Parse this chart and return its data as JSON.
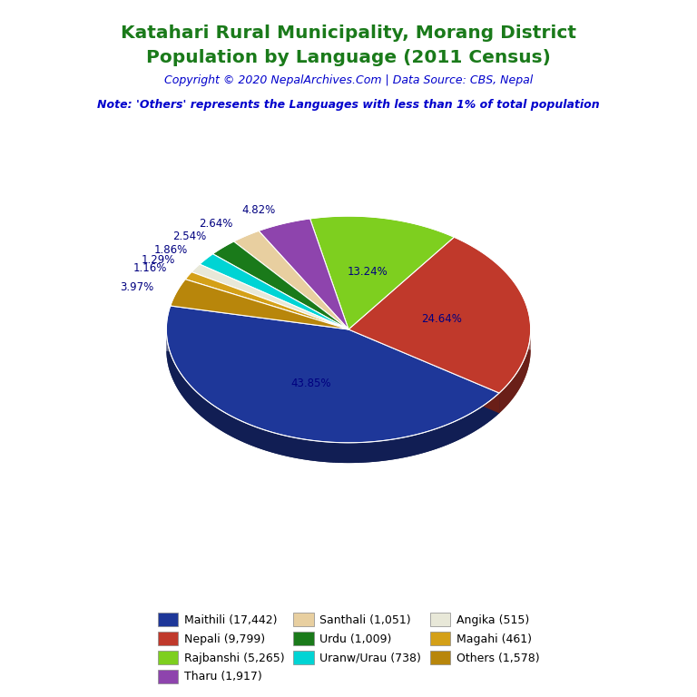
{
  "title_line1": "Katahari Rural Municipality, Morang District",
  "title_line2": "Population by Language (2011 Census)",
  "title_color": "#1a7a1a",
  "copyright_text": "Copyright © 2020 NepalArchives.Com | Data Source: CBS, Nepal",
  "copyright_color": "#0000cc",
  "note_text": "Note: 'Others' represents the Languages with less than 1% of total population",
  "note_color": "#0000cc",
  "labels": [
    "Maithili",
    "Nepali",
    "Rajbanshi",
    "Tharu",
    "Santhali",
    "Urdu",
    "Uranw/Urau",
    "Angika",
    "Magahi",
    "Others"
  ],
  "values": [
    17442,
    9799,
    5265,
    1917,
    1051,
    1009,
    738,
    515,
    461,
    1578
  ],
  "percentages": [
    43.85,
    24.64,
    13.24,
    4.82,
    2.64,
    2.54,
    1.86,
    1.29,
    1.16,
    3.97
  ],
  "colors": [
    "#1e3799",
    "#c0392b",
    "#7ecf1f",
    "#8e44ad",
    "#e8cfa0",
    "#1a7a1a",
    "#00d4d4",
    "#e8e8d8",
    "#d4a017",
    "#b8860b"
  ],
  "legend_labels": [
    "Maithili (17,442)",
    "Nepali (9,799)",
    "Rajbanshi (5,265)",
    "Tharu (1,917)",
    "Santhali (1,051)",
    "Urdu (1,009)",
    "Uranw/Urau (738)",
    "Angika (515)",
    "Magahi (461)",
    "Others (1,578)"
  ],
  "pct_label_color": "#000080",
  "background_color": "#ffffff",
  "start_angle": 168,
  "depth_ratio": 0.35
}
